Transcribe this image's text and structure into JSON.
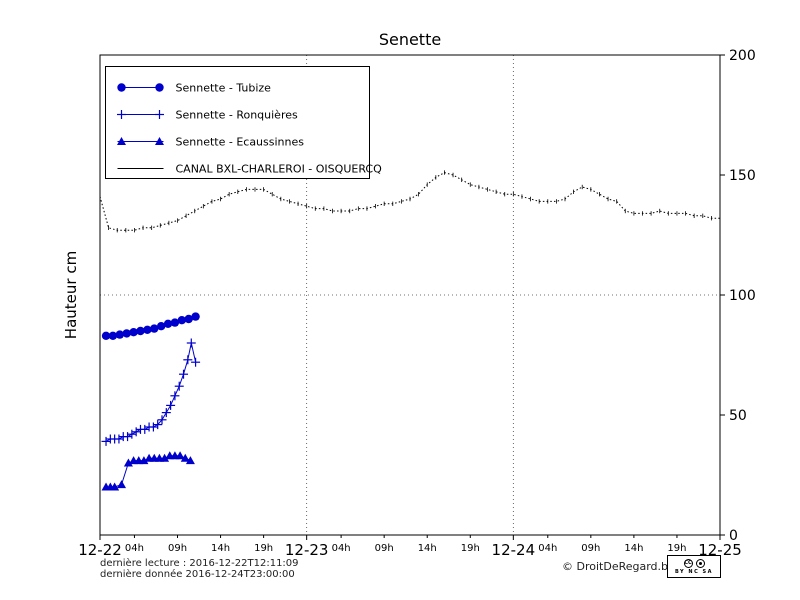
{
  "footer": {
    "last_reading": "dernière lecture : 2016-12-22T12:11:09",
    "last_data": "dernière donnée  2016-12-24T23:00:00",
    "copyright": "© DroitDeRegard.be",
    "cc": "CC",
    "license": "BY NC SA"
  },
  "chart_data": {
    "type": "line",
    "title": "Senette",
    "xlabel": "",
    "ylabel": "Hauteur cm",
    "ylim": [
      0,
      200
    ],
    "xlim_hours": [
      0,
      72
    ],
    "y_ticks": [
      0,
      50,
      100,
      150,
      200
    ],
    "x_major_ticks": [
      {
        "t": 0,
        "label": "12-22"
      },
      {
        "t": 24,
        "label": "12-23"
      },
      {
        "t": 48,
        "label": "12-24"
      },
      {
        "t": 72,
        "label": "12-25"
      }
    ],
    "x_minor_ticks": [
      {
        "t": 4,
        "label": "04h"
      },
      {
        "t": 9,
        "label": "09h"
      },
      {
        "t": 14,
        "label": "14h"
      },
      {
        "t": 19,
        "label": "19h"
      },
      {
        "t": 28,
        "label": "04h"
      },
      {
        "t": 33,
        "label": "09h"
      },
      {
        "t": 38,
        "label": "14h"
      },
      {
        "t": 43,
        "label": "19h"
      },
      {
        "t": 52,
        "label": "04h"
      },
      {
        "t": 57,
        "label": "09h"
      },
      {
        "t": 62,
        "label": "14h"
      },
      {
        "t": 67,
        "label": "19h"
      }
    ],
    "grid": {
      "vertical_at": [
        24,
        48
      ],
      "horizontal_at": [
        100
      ]
    },
    "legend_position": "upper left",
    "series": [
      {
        "name": "Sennette - Tubize",
        "color": "#0000cc",
        "marker": "circle",
        "linestyle": "solid",
        "x": [
          0.7,
          1.5,
          2.3,
          3.1,
          3.9,
          4.7,
          5.5,
          6.3,
          7.1,
          7.9,
          8.7,
          9.5,
          10.3,
          11.1
        ],
        "y": [
          83,
          83,
          83.5,
          84,
          84.5,
          85,
          85.5,
          86,
          87,
          88,
          88.5,
          89.5,
          90,
          91
        ]
      },
      {
        "name": "Sennette - Ronquières",
        "color": "#0000cc",
        "marker": "plus",
        "linestyle": "solid",
        "x": [
          0.7,
          1.2,
          1.7,
          2.2,
          2.7,
          3.2,
          3.7,
          4.2,
          4.7,
          5.2,
          5.7,
          6.2,
          6.7,
          7.2,
          7.7,
          8.2,
          8.7,
          9.2,
          9.7,
          10.2,
          10.6,
          11.1
        ],
        "y": [
          39,
          40,
          40,
          40,
          41,
          41,
          42,
          43,
          44,
          44,
          45,
          45,
          46,
          48,
          51,
          54,
          58,
          62,
          67,
          73,
          80,
          72
        ]
      },
      {
        "name": "Sennette - Ecaussinnes",
        "color": "#0000cc",
        "marker": "triangle",
        "linestyle": "solid",
        "x": [
          0.7,
          1.2,
          1.7,
          2.5,
          3.3,
          3.9,
          4.5,
          5.1,
          5.7,
          6.3,
          6.9,
          7.5,
          8.1,
          8.7,
          9.3,
          9.9,
          10.5
        ],
        "y": [
          20,
          20,
          20,
          21,
          30,
          31,
          31,
          31,
          32,
          32,
          32,
          32,
          33,
          33,
          33,
          32,
          31
        ]
      },
      {
        "name": "CANAL BXL-CHARLEROI  - OISQUERCQ",
        "color": "#000000",
        "marker": "tick",
        "linestyle": "dotted",
        "x": [
          0,
          1,
          2,
          3,
          4,
          5,
          6,
          7,
          8,
          9,
          10,
          11,
          12,
          13,
          14,
          15,
          16,
          17,
          18,
          19,
          20,
          21,
          22,
          23,
          24,
          25,
          26,
          27,
          28,
          29,
          30,
          31,
          32,
          33,
          34,
          35,
          36,
          37,
          38,
          39,
          40,
          41,
          42,
          43,
          44,
          45,
          46,
          47,
          48,
          49,
          50,
          51,
          52,
          53,
          54,
          55,
          56,
          57,
          58,
          59,
          60,
          61,
          62,
          63,
          64,
          65,
          66,
          67,
          68,
          69,
          70,
          71,
          72
        ],
        "y": [
          141,
          128,
          127,
          127,
          127,
          128,
          128,
          129,
          130,
          131,
          133,
          135,
          137,
          139,
          140,
          142,
          143,
          144,
          144,
          144,
          142,
          140,
          139,
          138,
          137,
          136,
          136,
          135,
          135,
          135,
          136,
          136,
          137,
          138,
          138,
          139,
          140,
          142,
          146,
          149,
          151,
          150,
          148,
          146,
          145,
          144,
          143,
          142,
          142,
          141,
          140,
          139,
          139,
          139,
          140,
          143,
          145,
          144,
          142,
          140,
          139,
          135,
          134,
          134,
          134,
          135,
          134,
          134,
          134,
          133,
          133,
          132,
          132
        ]
      }
    ]
  }
}
